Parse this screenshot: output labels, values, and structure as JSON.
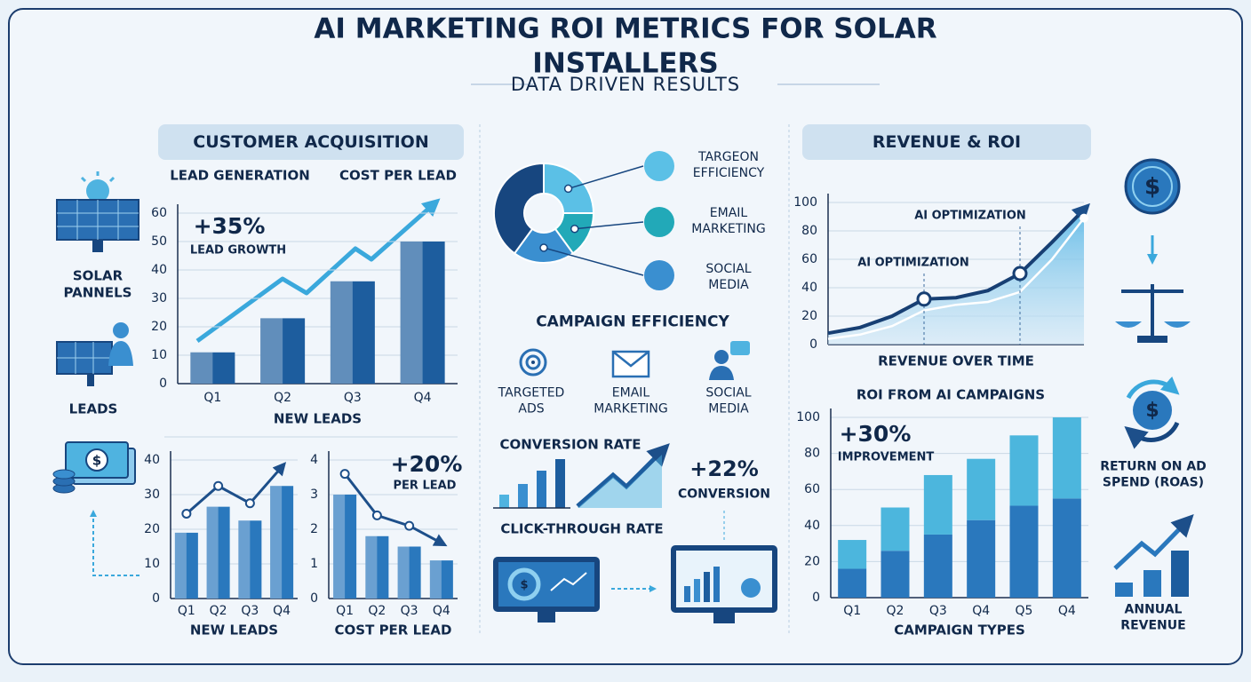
{
  "header": {
    "title": "AI MARKETING ROI METRICS FOR SOLAR INSTALLERS",
    "subtitle": "DATA DRIVEN RESULTS"
  },
  "sections": {
    "acquisition": "CUSTOMER ACQUISITION",
    "cost_heading": "COST PER LEAD",
    "revenue": "REVENUE & ROI"
  },
  "side_labels": {
    "panels": "SOLAR PANNELS",
    "leads": "LEADS",
    "roas": "RETURN ON AD SPEND (ROAS)",
    "annual": "ANNUAL REVENUE"
  },
  "campaign": {
    "title": "CAMPAIGN EFFICIENCY",
    "items": [
      "TARGETED ADS",
      "EMAIL MARKETING",
      "SOCIAL MEDIA"
    ],
    "conversion_title": "CONVERSION RATE",
    "conversion_change": "+22%",
    "conversion_label": "CONVERSION",
    "ctr_title": "CLICK-THROUGH RATE"
  },
  "chart_data": [
    {
      "type": "bar",
      "title": "LEAD GENERATION",
      "categories": [
        "Q1",
        "Q2",
        "Q3",
        "Q4"
      ],
      "values": [
        11,
        23,
        36,
        50
      ],
      "color": "#1d5d9e",
      "ylim": [
        0,
        60
      ],
      "yticks": [
        0,
        10,
        20,
        30,
        40,
        50,
        60
      ],
      "grid": true,
      "x_label": "NEW LEADS",
      "annotation": "+35%",
      "annotation_label": "LEAD GROWTH"
    },
    {
      "type": "bar",
      "categories": [
        "Q1",
        "Q2",
        "Q3",
        "Q4"
      ],
      "values": [
        19,
        26.5,
        22.5,
        32.5
      ],
      "color": "#2a78bd",
      "line_values": [
        24.5,
        32.5,
        27.5,
        38
      ],
      "line_color": "#1d4f8a",
      "ylim": [
        0,
        40
      ],
      "yticks": [
        0,
        10,
        20,
        30,
        40
      ],
      "grid": true,
      "x_label": "NEW LEADS"
    },
    {
      "type": "bar",
      "categories": [
        "Q1",
        "Q2",
        "Q3",
        "Q4"
      ],
      "values": [
        3,
        1.8,
        1.5,
        1.1
      ],
      "color": "#2a78bd",
      "line_values": [
        3.6,
        2.4,
        2.1,
        1.6
      ],
      "line_color": "#1d4f8a",
      "ylim": [
        0,
        4
      ],
      "yticks": [
        0,
        1,
        2,
        3,
        4
      ],
      "grid": true,
      "x_label": "COST PER LEAD",
      "annotation": "+20%",
      "annotation_label": "PER LEAD"
    },
    {
      "type": "donut",
      "categories": [
        "TARGEON EFFICIENCY",
        "EMAIL MARKETING",
        "SOCIAL MEDIA",
        null
      ],
      "values": [
        25,
        15,
        20,
        40
      ],
      "colors": [
        "#5bc0e6",
        "#22a9b8",
        "#3a8fd0",
        "#17467f"
      ]
    },
    {
      "type": "line",
      "categories": [
        null,
        null,
        null,
        null,
        null,
        null,
        null,
        null,
        null
      ],
      "series": [
        {
          "values": [
            8,
            12,
            20,
            32,
            33,
            38,
            50,
            72,
            95
          ],
          "color": "#173f73"
        },
        {
          "values": [
            4,
            7,
            13,
            24,
            28,
            30,
            37,
            60,
            89
          ],
          "color": "#ffffff"
        }
      ],
      "ylim": [
        0,
        100
      ],
      "yticks": [
        0,
        20,
        40,
        60,
        80,
        100
      ],
      "grid": true,
      "x_label": "REVENUE OVER TIME",
      "annotations": [
        "AI OPTIMIZATION",
        "AI OPTIMIZATION"
      ]
    },
    {
      "type": "stacked_bar",
      "title": "ROI FROM AI CAMPAIGNS",
      "categories": [
        "Q1",
        "Q2",
        "Q3",
        "Q4",
        "Q5",
        "Q4"
      ],
      "series": [
        {
          "values": [
            16,
            26,
            35,
            43,
            51,
            55
          ],
          "color": "#2a78bd"
        },
        {
          "values": [
            16,
            24,
            33,
            34,
            39,
            45
          ],
          "color": "#4cb6dd"
        }
      ],
      "ylim": [
        0,
        100
      ],
      "yticks": [
        0,
        20,
        40,
        60,
        80,
        100
      ],
      "grid": true,
      "x_label": "CAMPAIGN TYPES",
      "annotation": "+30%",
      "annotation_label": "IMPROVEMENT"
    }
  ]
}
